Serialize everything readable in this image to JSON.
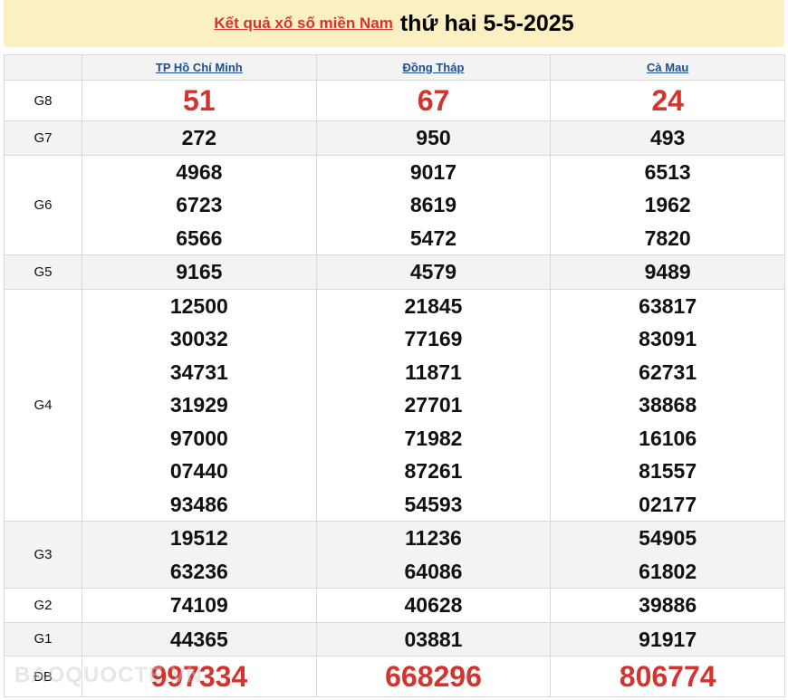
{
  "header": {
    "link": "Kết quả xổ số miền Nam",
    "date": "thứ hai 5-5-2025"
  },
  "provinces": [
    "TP Hồ Chí Minh",
    "Đồng Tháp",
    "Cà Mau"
  ],
  "prizes": [
    {
      "label": "G8",
      "big": true,
      "values": [
        [
          "51"
        ],
        [
          "67"
        ],
        [
          "24"
        ]
      ]
    },
    {
      "label": "G7",
      "values": [
        [
          "272"
        ],
        [
          "950"
        ],
        [
          "493"
        ]
      ]
    },
    {
      "label": "G6",
      "values": [
        [
          "4968",
          "6723",
          "6566"
        ],
        [
          "9017",
          "8619",
          "5472"
        ],
        [
          "6513",
          "1962",
          "7820"
        ]
      ]
    },
    {
      "label": "G5",
      "values": [
        [
          "9165"
        ],
        [
          "4579"
        ],
        [
          "9489"
        ]
      ]
    },
    {
      "label": "G4",
      "values": [
        [
          "12500",
          "30032",
          "34731",
          "31929",
          "97000",
          "07440",
          "93486"
        ],
        [
          "21845",
          "77169",
          "11871",
          "27701",
          "71982",
          "87261",
          "54593"
        ],
        [
          "63817",
          "83091",
          "62731",
          "38868",
          "16106",
          "81557",
          "02177"
        ]
      ]
    },
    {
      "label": "G3",
      "values": [
        [
          "19512",
          "63236"
        ],
        [
          "11236",
          "64086"
        ],
        [
          "54905",
          "61802"
        ]
      ]
    },
    {
      "label": "G2",
      "values": [
        [
          "74109"
        ],
        [
          "40628"
        ],
        [
          "39886"
        ]
      ]
    },
    {
      "label": "G1",
      "values": [
        [
          "44365"
        ],
        [
          "03881"
        ],
        [
          "91917"
        ]
      ]
    },
    {
      "label": "ĐB",
      "big": true,
      "values": [
        [
          "997334"
        ],
        [
          "668296"
        ],
        [
          "806774"
        ]
      ]
    }
  ],
  "watermark": "BAOQUOCTE.VN",
  "colors": {
    "accent": "#d2342f",
    "banner": "#fbf0c2",
    "link": "#1f4f8f"
  }
}
